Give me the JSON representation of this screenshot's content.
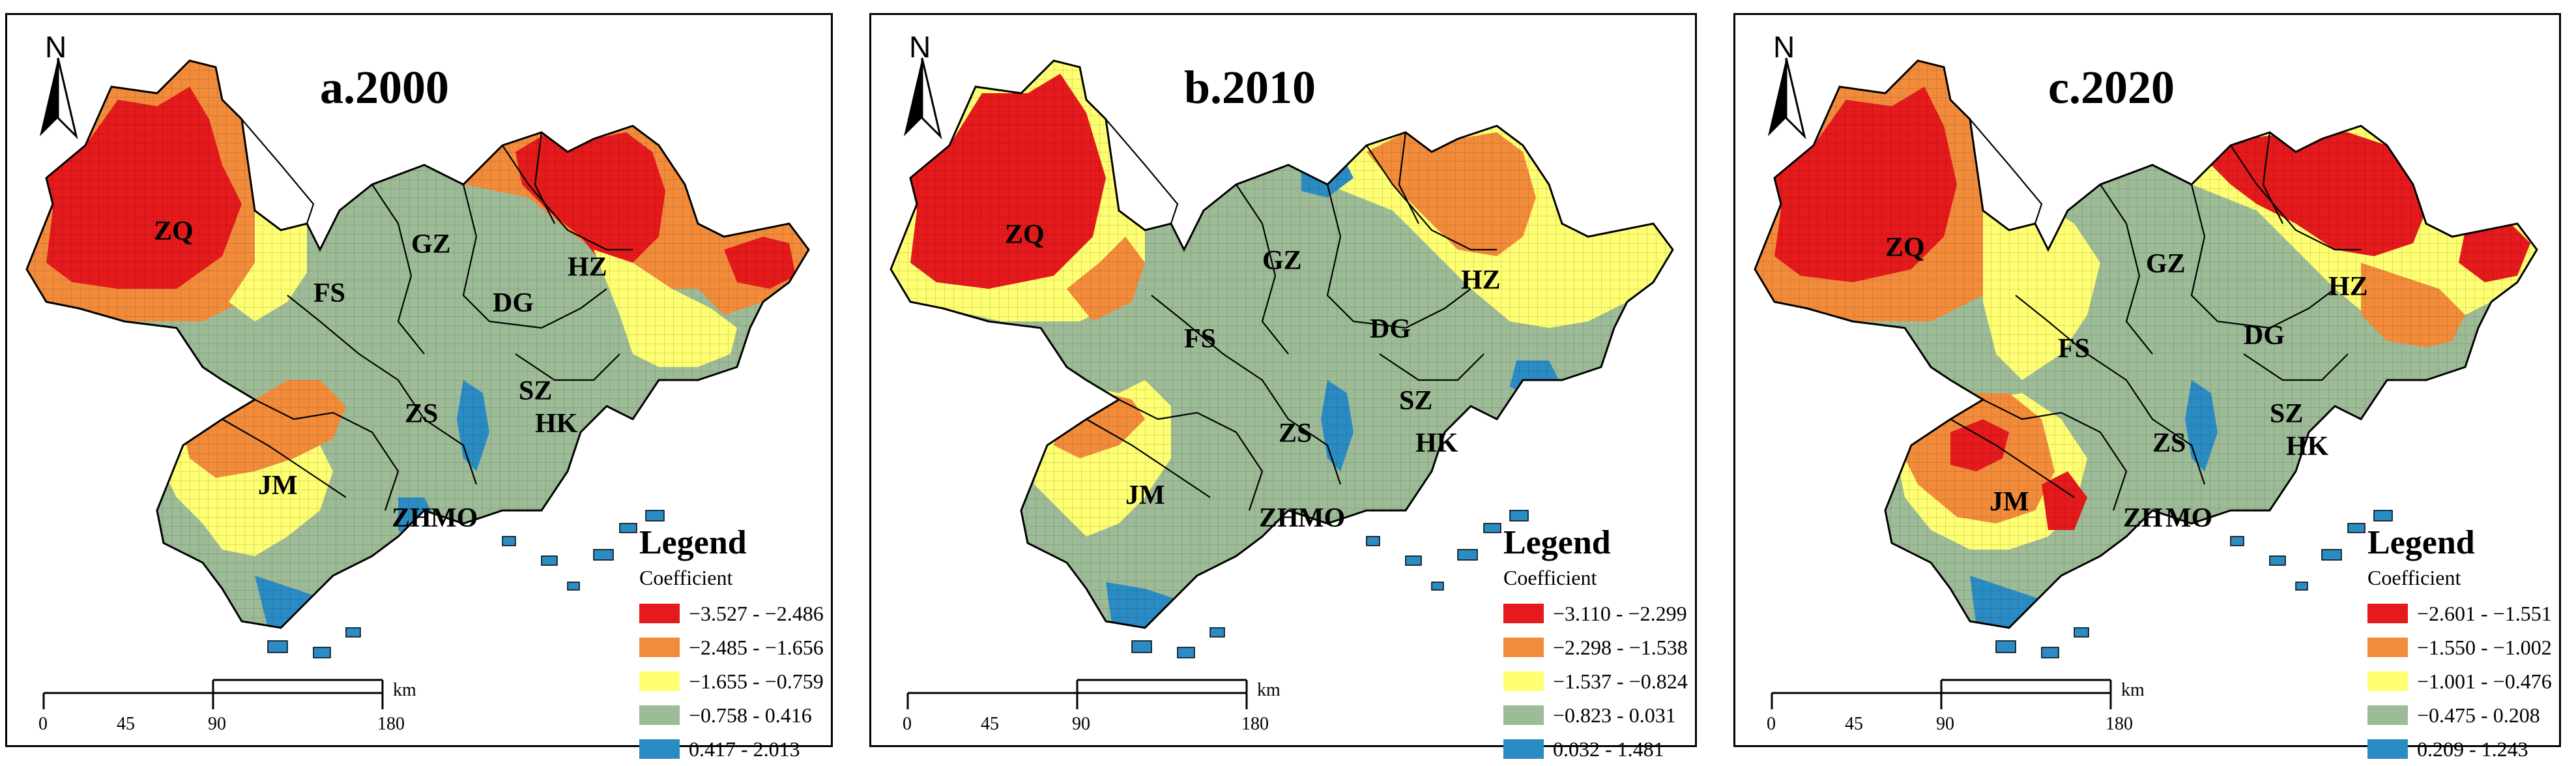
{
  "north_label": "N",
  "colors": {
    "class1": "#e41a1c",
    "class2": "#f28c3b",
    "class3": "#ffff73",
    "class4": "#9dbb97",
    "class5": "#2b8cc4"
  },
  "panels": [
    {
      "title": "a.2000",
      "legend_title": "Legend",
      "legend_subtitle": "Coefficient",
      "legend_items": [
        {
          "label": "−3.527 - −2.486",
          "color": "#e41a1c"
        },
        {
          "label": "−2.485 - −1.656",
          "color": "#f28c3b"
        },
        {
          "label": "−1.655 - −0.759",
          "color": "#ffff73"
        },
        {
          "label": "−0.758 - 0.416",
          "color": "#9dbb97"
        },
        {
          "label": "0.417 - 2.013",
          "color": "#2b8cc4"
        }
      ]
    },
    {
      "title": "b.2010",
      "legend_title": "Legend",
      "legend_subtitle": "Coefficient",
      "legend_items": [
        {
          "label": "−3.110 - −2.299",
          "color": "#e41a1c"
        },
        {
          "label": "−2.298 - −1.538",
          "color": "#f28c3b"
        },
        {
          "label": "−1.537 - −0.824",
          "color": "#ffff73"
        },
        {
          "label": "−0.823 - 0.031",
          "color": "#9dbb97"
        },
        {
          "label": "0.032 - 1.481",
          "color": "#2b8cc4"
        }
      ]
    },
    {
      "title": "c.2020",
      "legend_title": "Legend",
      "legend_subtitle": "Coefficient",
      "legend_items": [
        {
          "label": "−2.601 - −1.551",
          "color": "#e41a1c"
        },
        {
          "label": "−1.550 - −1.002",
          "color": "#f28c3b"
        },
        {
          "label": "−1.001 - −0.476",
          "color": "#ffff73"
        },
        {
          "label": "−0.475 - 0.208",
          "color": "#9dbb97"
        },
        {
          "label": "0.209 - 1.243",
          "color": "#2b8cc4"
        }
      ]
    }
  ],
  "scale": {
    "unit": "km",
    "ticks": [
      "0",
      "45",
      "90",
      "180"
    ]
  },
  "cities": [
    "ZQ",
    "GZ",
    "HZ",
    "FS",
    "DG",
    "ZS",
    "SZ",
    "HK",
    "JM",
    "ZH",
    "MO"
  ]
}
